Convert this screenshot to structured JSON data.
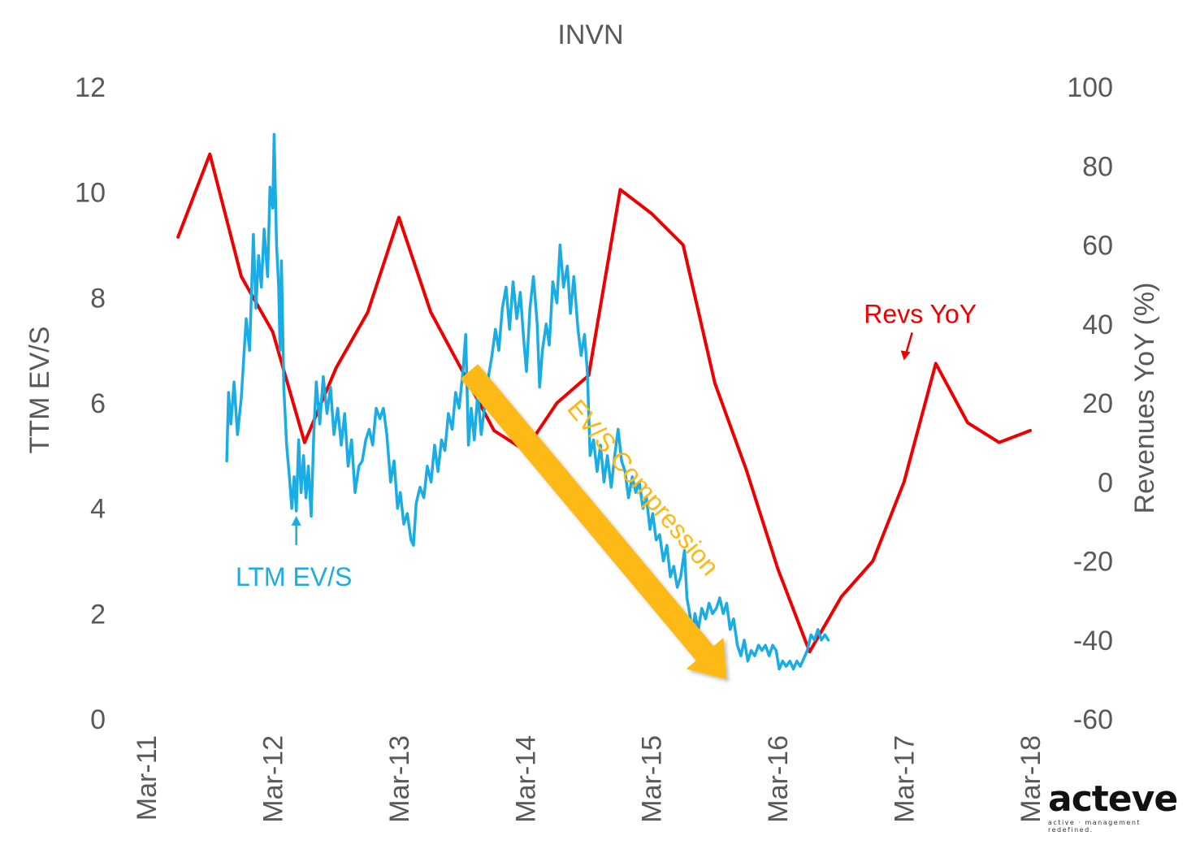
{
  "chart_data": {
    "type": "line",
    "title": "INVN",
    "ylabel_left": "TTM EV/S",
    "ylabel_right": "Revenues YoY (%)",
    "xlabel": "",
    "x_tick_labels": [
      "Mar-11",
      "Mar-12",
      "Mar-13",
      "Mar-14",
      "Mar-15",
      "Mar-16",
      "Mar-17",
      "Mar-18"
    ],
    "ylim_left": [
      0,
      12
    ],
    "ylim_right": [
      -60,
      100
    ],
    "y_ticks_left": [
      "0",
      "2",
      "4",
      "6",
      "8",
      "10",
      "12"
    ],
    "y_ticks_right": [
      "-60",
      "-40",
      "-20",
      "0",
      "20",
      "40",
      "60",
      "80",
      "100"
    ],
    "grid": false,
    "colors": {
      "evs": "#1AACE4",
      "revs": "#EE0000",
      "arrow": "#FDB913",
      "text": "#595959"
    },
    "series": [
      {
        "name": "Revs YoY",
        "axis": "right",
        "color": "#EE0000",
        "points": [
          [
            "2011-06",
            62
          ],
          [
            "2011-09",
            83
          ],
          [
            "2011-12",
            52
          ],
          [
            "2012-03",
            38
          ],
          [
            "2012-06",
            10
          ],
          [
            "2012-09",
            29
          ],
          [
            "2012-12",
            43
          ],
          [
            "2013-03",
            67
          ],
          [
            "2013-06",
            43
          ],
          [
            "2013-09",
            28
          ],
          [
            "2013-12",
            13
          ],
          [
            "2014-03",
            8
          ],
          [
            "2014-06",
            20
          ],
          [
            "2014-09",
            27
          ],
          [
            "2014-12",
            74
          ],
          [
            "2015-03",
            68
          ],
          [
            "2015-06",
            60
          ],
          [
            "2015-09",
            25
          ],
          [
            "2015-12",
            3
          ],
          [
            "2016-03",
            -22
          ],
          [
            "2016-06",
            -43
          ],
          [
            "2016-09",
            -29
          ],
          [
            "2016-12",
            -20
          ],
          [
            "2017-03",
            0
          ],
          [
            "2017-06",
            30
          ],
          [
            "2017-09",
            15
          ],
          [
            "2017-12",
            10
          ],
          [
            "2018-03",
            13
          ]
        ]
      },
      {
        "name": "LTM EV/S",
        "axis": "left",
        "color": "#1AACE4",
        "points": [
          [
            "2011-10-20",
            4.9
          ],
          [
            "2011-10-25",
            6.2
          ],
          [
            "2011-11-01",
            5.6
          ],
          [
            "2011-11-10",
            6.4
          ],
          [
            "2011-11-20",
            5.4
          ],
          [
            "2011-12-01",
            6.1
          ],
          [
            "2011-12-15",
            7.6
          ],
          [
            "2011-12-25",
            7.0
          ],
          [
            "2012-01-05",
            9.2
          ],
          [
            "2012-01-12",
            7.8
          ],
          [
            "2012-01-20",
            8.8
          ],
          [
            "2012-01-28",
            8.2
          ],
          [
            "2012-02-05",
            9.3
          ],
          [
            "2012-02-15",
            8.4
          ],
          [
            "2012-02-22",
            10.1
          ],
          [
            "2012-03-01",
            9.7
          ],
          [
            "2012-03-05",
            11.1
          ],
          [
            "2012-03-12",
            9.0
          ],
          [
            "2012-03-18",
            8.2
          ],
          [
            "2012-03-22",
            7.0
          ],
          [
            "2012-03-26",
            8.7
          ],
          [
            "2012-04-02",
            6.3
          ],
          [
            "2012-04-10",
            5.2
          ],
          [
            "2012-04-18",
            4.6
          ],
          [
            "2012-04-25",
            4.0
          ],
          [
            "2012-05-02",
            4.6
          ],
          [
            "2012-05-08",
            3.95
          ],
          [
            "2012-05-15",
            5.3
          ],
          [
            "2012-05-22",
            4.3
          ],
          [
            "2012-05-29",
            5.0
          ],
          [
            "2012-06-05",
            4.2
          ],
          [
            "2012-06-12",
            4.8
          ],
          [
            "2012-06-20",
            3.85
          ],
          [
            "2012-06-28",
            5.5
          ],
          [
            "2012-07-05",
            6.4
          ],
          [
            "2012-07-15",
            5.6
          ],
          [
            "2012-07-25",
            6.5
          ],
          [
            "2012-08-05",
            5.8
          ],
          [
            "2012-08-15",
            6.3
          ],
          [
            "2012-08-25",
            5.4
          ],
          [
            "2012-09-05",
            5.9
          ],
          [
            "2012-09-15",
            5.2
          ],
          [
            "2012-09-25",
            5.8
          ],
          [
            "2012-10-05",
            4.8
          ],
          [
            "2012-10-15",
            5.3
          ],
          [
            "2012-10-25",
            4.3
          ],
          [
            "2012-11-05",
            4.8
          ],
          [
            "2012-11-15",
            4.9
          ],
          [
            "2012-11-25",
            5.3
          ],
          [
            "2012-12-05",
            5.5
          ],
          [
            "2012-12-15",
            5.2
          ],
          [
            "2012-12-25",
            5.9
          ],
          [
            "2013-01-05",
            5.7
          ],
          [
            "2013-01-15",
            5.9
          ],
          [
            "2013-01-25",
            5.4
          ],
          [
            "2013-02-05",
            4.5
          ],
          [
            "2013-02-15",
            4.9
          ],
          [
            "2013-02-25",
            4.0
          ],
          [
            "2013-03-05",
            4.3
          ],
          [
            "2013-03-15",
            3.7
          ],
          [
            "2013-03-25",
            3.9
          ],
          [
            "2013-04-05",
            3.4
          ],
          [
            "2013-04-12",
            3.3
          ],
          [
            "2013-04-20",
            4.1
          ],
          [
            "2013-05-01",
            4.4
          ],
          [
            "2013-05-12",
            4.2
          ],
          [
            "2013-05-22",
            4.8
          ],
          [
            "2013-06-02",
            4.5
          ],
          [
            "2013-06-12",
            5.2
          ],
          [
            "2013-06-22",
            4.7
          ],
          [
            "2013-07-02",
            5.3
          ],
          [
            "2013-07-12",
            5.1
          ],
          [
            "2013-07-22",
            5.8
          ],
          [
            "2013-08-02",
            5.5
          ],
          [
            "2013-08-12",
            6.2
          ],
          [
            "2013-08-22",
            5.9
          ],
          [
            "2013-09-02",
            6.6
          ],
          [
            "2013-09-10",
            7.3
          ],
          [
            "2013-09-18",
            5.2
          ],
          [
            "2013-09-26",
            5.9
          ],
          [
            "2013-10-05",
            5.3
          ],
          [
            "2013-10-15",
            6.2
          ],
          [
            "2013-10-25",
            5.4
          ],
          [
            "2013-11-05",
            6.0
          ],
          [
            "2013-11-15",
            6.5
          ],
          [
            "2013-11-25",
            6.9
          ],
          [
            "2013-12-05",
            7.4
          ],
          [
            "2013-12-15",
            7.0
          ],
          [
            "2013-12-25",
            7.8
          ],
          [
            "2014-01-05",
            8.2
          ],
          [
            "2014-01-15",
            7.4
          ],
          [
            "2014-01-25",
            8.3
          ],
          [
            "2014-02-05",
            7.6
          ],
          [
            "2014-02-15",
            8.1
          ],
          [
            "2014-02-25",
            7.2
          ],
          [
            "2014-03-05",
            6.6
          ],
          [
            "2014-03-15",
            7.8
          ],
          [
            "2014-03-25",
            8.4
          ],
          [
            "2014-04-05",
            7.5
          ],
          [
            "2014-04-12",
            6.3
          ],
          [
            "2014-04-20",
            7.0
          ],
          [
            "2014-05-01",
            7.5
          ],
          [
            "2014-05-10",
            7.1
          ],
          [
            "2014-05-20",
            8.3
          ],
          [
            "2014-06-01",
            7.9
          ],
          [
            "2014-06-10",
            9.0
          ],
          [
            "2014-06-20",
            8.2
          ],
          [
            "2014-07-01",
            8.6
          ],
          [
            "2014-07-10",
            7.7
          ],
          [
            "2014-07-20",
            8.4
          ],
          [
            "2014-08-01",
            7.4
          ],
          [
            "2014-08-10",
            6.9
          ],
          [
            "2014-08-20",
            7.3
          ],
          [
            "2014-08-28",
            6.6
          ],
          [
            "2014-09-05",
            5.0
          ],
          [
            "2014-09-15",
            5.3
          ],
          [
            "2014-09-25",
            4.7
          ],
          [
            "2014-10-05",
            5.2
          ],
          [
            "2014-10-15",
            4.5
          ],
          [
            "2014-10-25",
            5.0
          ],
          [
            "2014-11-05",
            4.4
          ],
          [
            "2014-11-15",
            5.0
          ],
          [
            "2014-11-25",
            5.5
          ],
          [
            "2014-12-05",
            4.9
          ],
          [
            "2014-12-15",
            4.7
          ],
          [
            "2014-12-25",
            4.2
          ],
          [
            "2015-01-05",
            4.6
          ],
          [
            "2015-01-15",
            4.3
          ],
          [
            "2015-01-25",
            4.5
          ],
          [
            "2015-02-05",
            4.0
          ],
          [
            "2015-02-15",
            4.2
          ],
          [
            "2015-02-25",
            3.6
          ],
          [
            "2015-03-05",
            3.9
          ],
          [
            "2015-03-15",
            3.4
          ],
          [
            "2015-03-25",
            3.5
          ],
          [
            "2015-04-05",
            3.0
          ],
          [
            "2015-04-15",
            3.3
          ],
          [
            "2015-04-25",
            2.7
          ],
          [
            "2015-05-05",
            2.9
          ],
          [
            "2015-05-15",
            2.5
          ],
          [
            "2015-05-25",
            2.7
          ],
          [
            "2015-06-05",
            3.2
          ],
          [
            "2015-06-12",
            2.3
          ],
          [
            "2015-06-20",
            2.0
          ],
          [
            "2015-06-28",
            1.6
          ],
          [
            "2015-07-05",
            2.0
          ],
          [
            "2015-07-15",
            1.7
          ],
          [
            "2015-07-25",
            2.1
          ],
          [
            "2015-08-05",
            1.9
          ],
          [
            "2015-08-15",
            2.2
          ],
          [
            "2015-08-25",
            2.0
          ],
          [
            "2015-09-05",
            2.1
          ],
          [
            "2015-09-15",
            2.3
          ],
          [
            "2015-09-25",
            2.0
          ],
          [
            "2015-10-05",
            2.2
          ],
          [
            "2015-10-15",
            1.7
          ],
          [
            "2015-10-25",
            1.9
          ],
          [
            "2015-11-05",
            1.4
          ],
          [
            "2015-11-15",
            1.2
          ],
          [
            "2015-11-25",
            1.5
          ],
          [
            "2015-12-05",
            1.1
          ],
          [
            "2015-12-15",
            1.3
          ],
          [
            "2015-12-25",
            1.2
          ],
          [
            "2016-01-05",
            1.4
          ],
          [
            "2016-01-15",
            1.3
          ],
          [
            "2016-01-25",
            1.4
          ],
          [
            "2016-02-05",
            1.2
          ],
          [
            "2016-02-15",
            1.4
          ],
          [
            "2016-02-25",
            1.3
          ],
          [
            "2016-03-05",
            0.95
          ],
          [
            "2016-03-15",
            1.1
          ],
          [
            "2016-03-25",
            1.0
          ],
          [
            "2016-04-05",
            1.1
          ],
          [
            "2016-04-15",
            0.95
          ],
          [
            "2016-04-25",
            1.1
          ],
          [
            "2016-05-05",
            1.0
          ],
          [
            "2016-05-15",
            1.15
          ],
          [
            "2016-05-25",
            1.3
          ],
          [
            "2016-06-05",
            1.6
          ],
          [
            "2016-06-15",
            1.5
          ],
          [
            "2016-06-25",
            1.7
          ],
          [
            "2016-07-05",
            1.5
          ],
          [
            "2016-07-15",
            1.6
          ],
          [
            "2016-07-25",
            1.5
          ]
        ]
      }
    ],
    "annotations": [
      {
        "text": "LTM EV/S",
        "color": "#1AACE4",
        "points_to": [
          "2012-05-08",
          3.95
        ]
      },
      {
        "text": "Revs YoY",
        "color": "#EE0000",
        "points_to": [
          "2017-03",
          30
        ]
      },
      {
        "text": "EV/S Compression",
        "color": "#FDB913",
        "arrow_from": [
          "2013-09-20",
          6.6
        ],
        "arrow_to": [
          "2015-10-05",
          0.75
        ]
      }
    ]
  },
  "logo": {
    "wordmark": "acteve",
    "tagline": "active · management redefined."
  }
}
